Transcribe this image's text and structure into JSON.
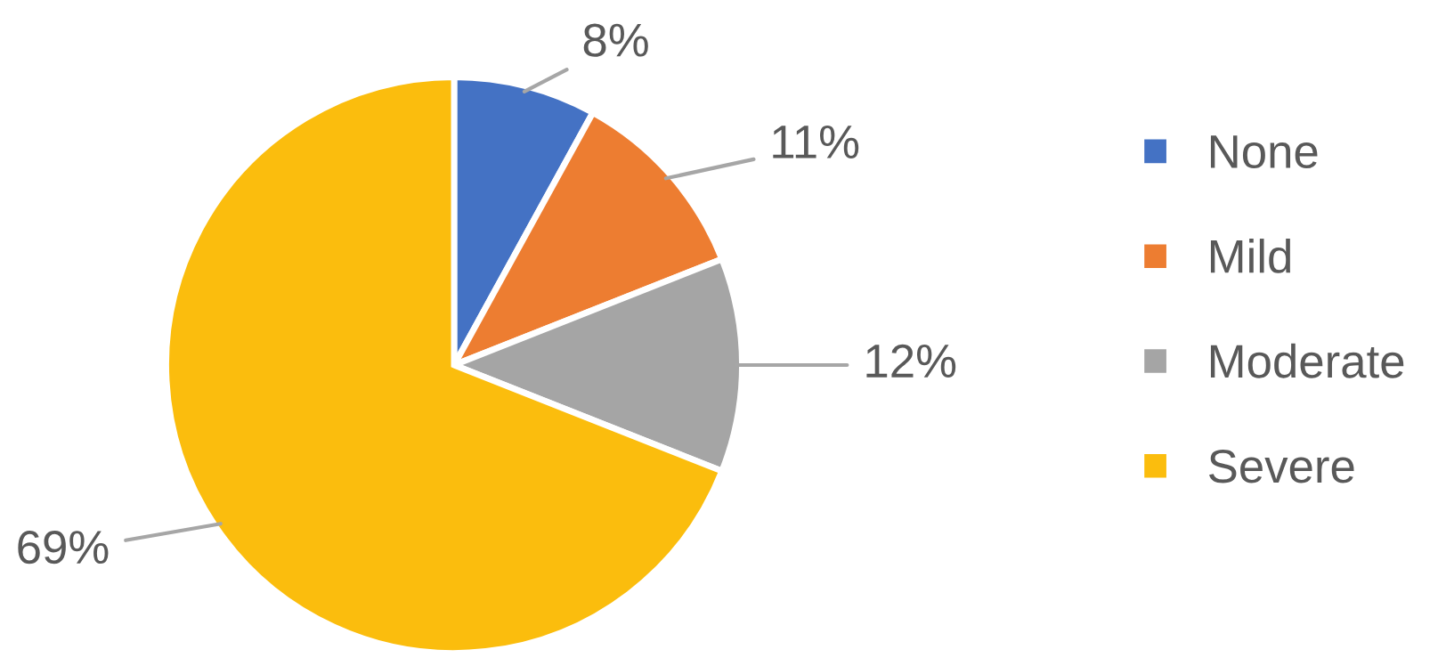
{
  "chart_data": {
    "type": "pie",
    "categories": [
      "None",
      "Mild",
      "Moderate",
      "Severe"
    ],
    "values": [
      8,
      11,
      12,
      69
    ],
    "colors": [
      "#4472c4",
      "#ed7d31",
      "#a5a5a5",
      "#fbbd0d"
    ],
    "value_labels": [
      "8%",
      "11%",
      "12%",
      "69%"
    ],
    "legend": "right"
  }
}
